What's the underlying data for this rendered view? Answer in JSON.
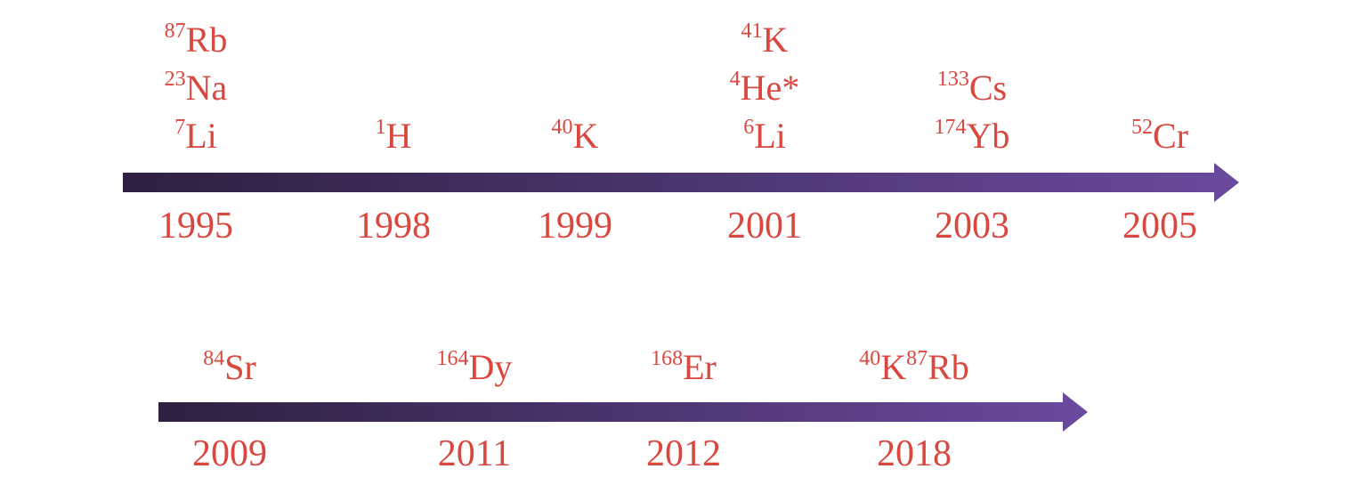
{
  "colors": {
    "text": "#d9473f",
    "arrow_start": "#2e2040",
    "arrow_end": "#6a4a9e"
  },
  "timelines": [
    {
      "events": [
        {
          "year": "1995",
          "species": [
            {
              "mass": "87",
              "symbol": "Rb"
            },
            {
              "mass": "23",
              "symbol": "Na"
            },
            {
              "mass": "7",
              "symbol": "Li"
            }
          ]
        },
        {
          "year": "1998",
          "species": [
            {
              "mass": "1",
              "symbol": "H"
            }
          ]
        },
        {
          "year": "1999",
          "species": [
            {
              "mass": "40",
              "symbol": "K"
            }
          ]
        },
        {
          "year": "2001",
          "species": [
            {
              "mass": "41",
              "symbol": "K"
            },
            {
              "mass": "4",
              "symbol": "He*"
            },
            {
              "mass": "6",
              "symbol": "Li"
            }
          ]
        },
        {
          "year": "2003",
          "species": [
            {
              "mass": "133",
              "symbol": "Cs"
            },
            {
              "mass": "174",
              "symbol": "Yb"
            }
          ]
        },
        {
          "year": "2005",
          "species": [
            {
              "mass": "52",
              "symbol": "Cr"
            }
          ]
        }
      ]
    },
    {
      "events": [
        {
          "year": "2009",
          "species": [
            {
              "mass": "84",
              "symbol": "Sr"
            }
          ]
        },
        {
          "year": "2011",
          "species": [
            {
              "mass": "164",
              "symbol": "Dy"
            }
          ]
        },
        {
          "year": "2012",
          "species": [
            {
              "mass": "168",
              "symbol": "Er"
            }
          ]
        },
        {
          "year": "2018",
          "species": [
            {
              "mass": "40",
              "symbol": "K"
            },
            {
              "mass": "87",
              "symbol": "Rb"
            }
          ],
          "inline": true
        }
      ]
    }
  ]
}
